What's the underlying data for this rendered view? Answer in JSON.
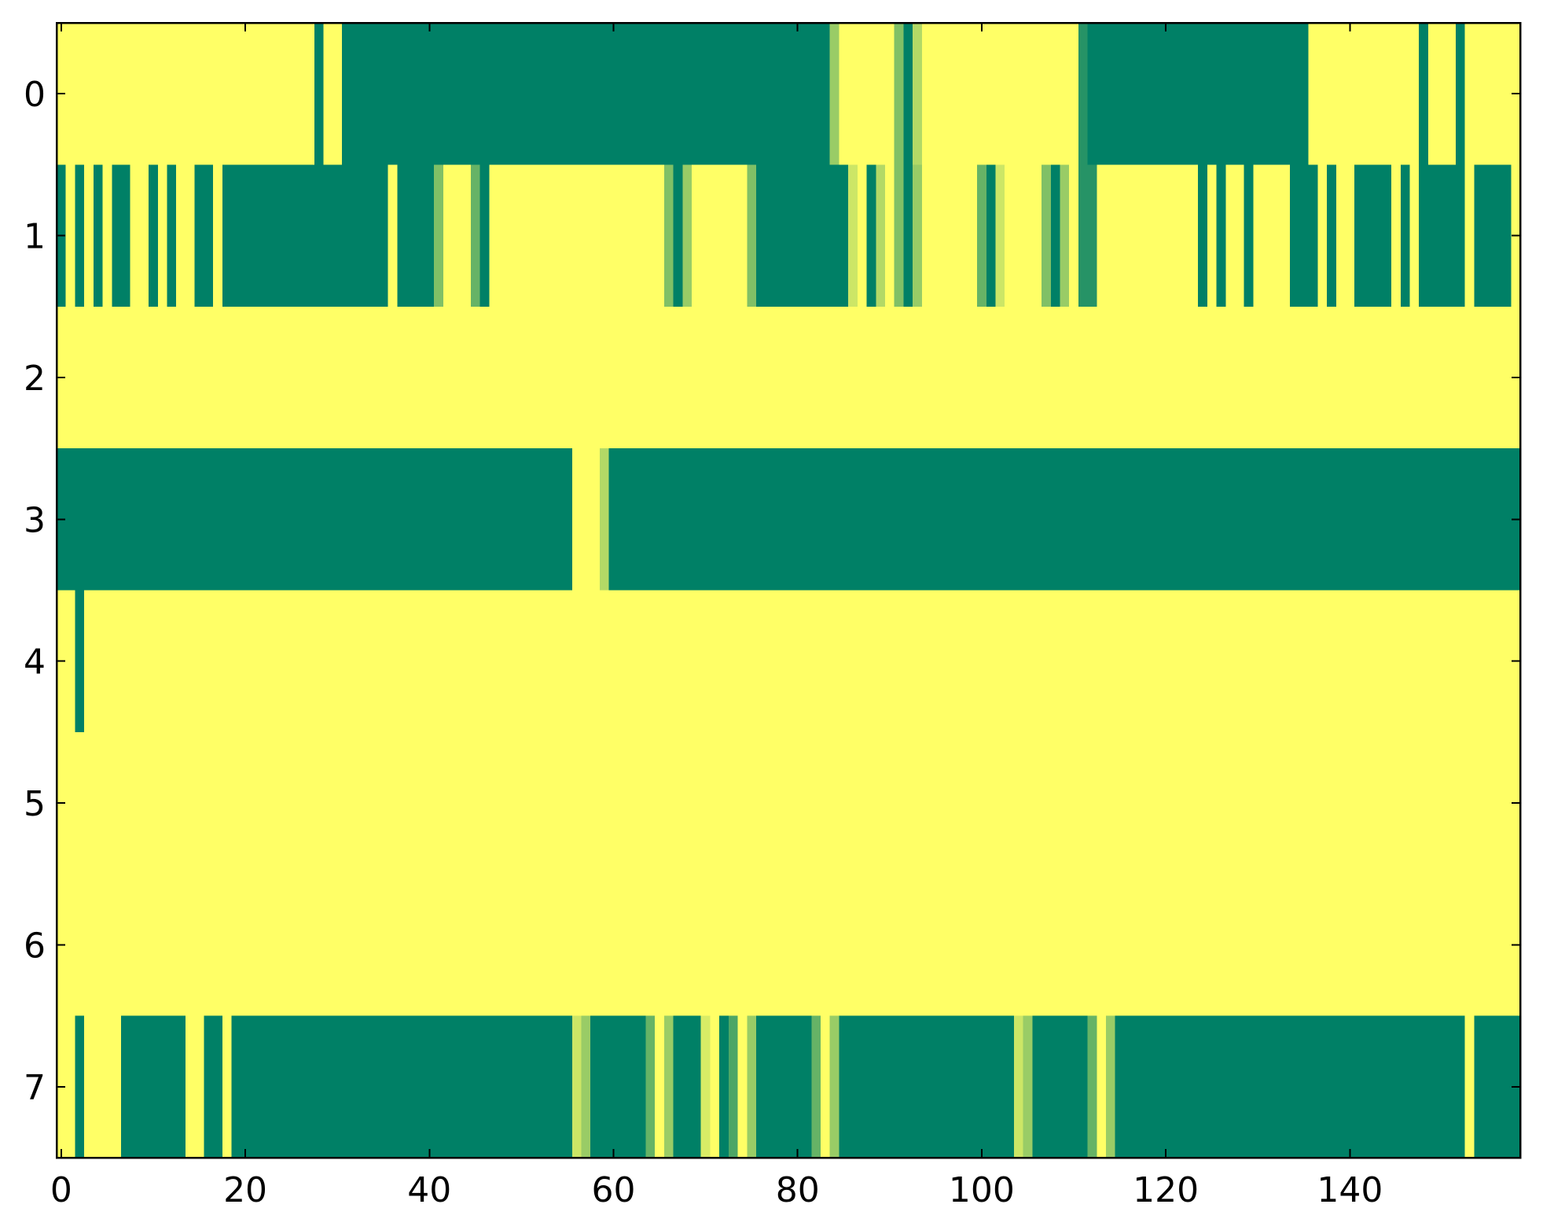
{
  "chart_data": {
    "type": "heatmap",
    "colormap": [
      "#008066",
      "#ffff66"
    ],
    "clim": [
      0,
      1
    ],
    "xlim": [
      -0.5,
      158.5
    ],
    "ylim": [
      7.5,
      -0.5
    ],
    "xticks": [
      0,
      20,
      40,
      60,
      80,
      100,
      120,
      140
    ],
    "yticks": [
      0,
      1,
      2,
      3,
      4,
      5,
      6,
      7
    ],
    "z": [
      [
        1,
        1,
        1,
        1,
        1,
        1,
        1,
        1,
        1,
        1,
        1,
        1,
        1,
        1,
        1,
        1,
        1,
        1,
        1,
        1,
        1,
        1,
        1,
        1,
        1,
        1,
        1,
        1,
        0,
        1,
        1,
        0,
        0,
        0,
        0,
        0,
        0,
        0,
        0,
        0,
        0,
        0,
        0,
        0,
        0,
        0,
        0,
        0,
        0,
        0,
        0,
        0,
        0,
        0,
        0,
        0,
        0,
        0,
        0,
        0,
        0,
        0,
        0,
        0,
        0,
        0,
        0,
        0,
        0,
        0,
        0,
        0,
        0,
        0,
        0,
        0,
        0,
        0,
        0,
        0,
        0,
        0,
        0,
        0,
        0.6,
        1,
        1,
        1,
        1,
        1,
        1,
        0.5,
        0,
        0.7,
        1,
        1,
        1,
        1,
        1,
        1,
        1,
        1,
        1,
        1,
        1,
        1,
        1,
        1,
        1,
        1,
        1,
        0.15,
        0,
        0,
        0,
        0,
        0,
        0,
        0,
        0,
        0,
        0,
        0,
        0,
        0,
        0,
        0,
        0,
        0,
        0,
        0,
        0,
        0,
        0,
        0,
        0,
        1,
        1,
        1,
        1,
        1,
        1,
        1,
        1,
        1,
        1,
        1,
        1,
        0,
        1,
        1,
        1,
        0,
        1,
        1,
        1,
        1,
        1,
        1
      ],
      [
        0,
        1,
        0,
        1,
        0,
        1,
        0,
        0,
        1,
        1,
        0,
        1,
        0,
        1,
        1,
        0,
        0,
        1,
        0,
        0,
        0,
        0,
        0,
        0,
        0,
        0,
        0,
        0,
        0,
        0,
        0,
        0,
        0,
        0,
        0,
        0,
        1,
        0,
        0,
        0,
        0,
        0.5,
        1,
        1,
        1,
        0.4,
        0,
        1,
        1,
        1,
        1,
        1,
        1,
        1,
        1,
        1,
        1,
        1,
        1,
        1,
        1,
        1,
        1,
        1,
        1,
        1,
        0.5,
        0,
        0.6,
        1,
        1,
        1,
        1,
        1,
        1,
        0.5,
        0,
        0,
        0,
        0,
        0,
        0,
        0,
        0,
        0,
        0,
        0.8,
        1,
        0,
        0.7,
        1,
        0.5,
        0,
        0.6,
        1,
        1,
        1,
        1,
        1,
        1,
        0.4,
        0,
        0.8,
        1,
        1,
        1,
        1,
        0.5,
        0,
        0.6,
        1,
        0.15,
        0.15,
        1,
        1,
        1,
        1,
        1,
        1,
        1,
        1,
        1,
        1,
        1,
        0,
        1,
        0,
        1,
        1,
        0,
        1,
        1,
        1,
        1,
        0,
        0,
        0,
        1,
        0,
        1,
        1,
        0,
        0,
        0,
        0,
        1,
        0,
        1,
        0,
        0,
        0,
        0,
        0,
        1,
        0,
        0,
        0,
        0,
        1
      ],
      [
        1,
        1,
        1,
        1,
        1,
        1,
        1,
        1,
        1,
        1,
        1,
        1,
        1,
        1,
        1,
        1,
        1,
        1,
        1,
        1,
        1,
        1,
        1,
        1,
        1,
        1,
        1,
        1,
        1,
        1,
        1,
        1,
        1,
        1,
        1,
        1,
        1,
        1,
        1,
        1,
        1,
        1,
        1,
        1,
        1,
        1,
        1,
        1,
        1,
        1,
        1,
        1,
        1,
        1,
        1,
        1,
        1,
        1,
        1,
        1,
        1,
        1,
        1,
        1,
        1,
        1,
        1,
        1,
        1,
        1,
        1,
        1,
        1,
        1,
        1,
        1,
        1,
        1,
        1,
        1,
        1,
        1,
        1,
        1,
        1,
        1,
        1,
        1,
        1,
        1,
        1,
        1,
        1,
        1,
        1,
        1,
        1,
        1,
        1,
        1,
        1,
        1,
        1,
        1,
        1,
        1,
        1,
        1,
        1,
        1,
        1,
        1,
        1,
        1,
        1,
        1,
        1,
        1,
        1,
        1,
        1,
        1,
        1,
        1,
        1,
        1,
        1,
        1,
        1,
        1,
        1,
        1,
        1,
        1,
        1,
        1,
        1,
        1,
        1,
        1,
        1,
        1,
        1,
        1,
        1,
        1,
        1,
        1,
        1,
        1,
        1,
        1,
        1,
        1,
        1,
        1,
        1,
        1,
        1
      ],
      [
        0,
        0,
        0,
        0,
        0,
        0,
        0,
        0,
        0,
        0,
        0,
        0,
        0,
        0,
        0,
        0,
        0,
        0,
        0,
        0,
        0,
        0,
        0,
        0,
        0,
        0,
        0,
        0,
        0,
        0,
        0,
        0,
        0,
        0,
        0,
        0,
        0,
        0,
        0,
        0,
        0,
        0,
        0,
        0,
        0,
        0,
        0,
        0,
        0,
        0,
        0,
        0,
        0,
        0,
        0,
        0,
        1,
        1,
        1,
        0.7,
        0,
        0,
        0,
        0,
        0,
        0,
        0,
        0,
        0,
        0,
        0,
        0,
        0,
        0,
        0,
        0,
        0,
        0,
        0,
        0,
        0,
        0,
        0,
        0,
        0,
        0,
        0,
        0,
        0,
        0,
        0,
        0,
        0,
        0,
        0,
        0,
        0,
        0,
        0,
        0,
        0,
        0,
        0,
        0,
        0,
        0,
        0,
        0,
        0,
        0,
        0,
        0,
        0,
        0,
        0,
        0,
        0,
        0,
        0,
        0,
        0,
        0,
        0,
        0,
        0,
        0,
        0,
        0,
        0,
        0,
        0,
        0,
        0,
        0,
        0,
        0,
        0,
        0,
        0,
        0,
        0,
        0,
        0,
        0,
        0,
        0,
        0,
        0,
        0,
        0,
        0,
        0,
        0,
        0,
        0,
        0,
        0,
        0,
        0
      ],
      [
        1,
        1,
        0,
        1,
        1,
        1,
        1,
        1,
        1,
        1,
        1,
        1,
        1,
        1,
        1,
        1,
        1,
        1,
        1,
        1,
        1,
        1,
        1,
        1,
        1,
        1,
        1,
        1,
        1,
        1,
        1,
        1,
        1,
        1,
        1,
        1,
        1,
        1,
        1,
        1,
        1,
        1,
        1,
        1,
        1,
        1,
        1,
        1,
        1,
        1,
        1,
        1,
        1,
        1,
        1,
        1,
        1,
        1,
        1,
        1,
        1,
        1,
        1,
        1,
        1,
        1,
        1,
        1,
        1,
        1,
        1,
        1,
        1,
        1,
        1,
        1,
        1,
        1,
        1,
        1,
        1,
        1,
        1,
        1,
        1,
        1,
        1,
        1,
        1,
        1,
        1,
        1,
        1,
        1,
        1,
        1,
        1,
        1,
        1,
        1,
        1,
        1,
        1,
        1,
        1,
        1,
        1,
        1,
        1,
        1,
        1,
        1,
        1,
        1,
        1,
        1,
        1,
        1,
        1,
        1,
        1,
        1,
        1,
        1,
        1,
        1,
        1,
        1,
        1,
        1,
        1,
        1,
        1,
        1,
        1,
        1,
        1,
        1,
        1,
        1,
        1,
        1,
        1,
        1,
        1,
        1,
        1,
        1,
        1,
        1,
        1,
        1,
        1,
        1,
        1,
        1,
        1,
        1,
        1
      ],
      [
        1,
        1,
        1,
        1,
        1,
        1,
        1,
        1,
        1,
        1,
        1,
        1,
        1,
        1,
        1,
        1,
        1,
        1,
        1,
        1,
        1,
        1,
        1,
        1,
        1,
        1,
        1,
        1,
        1,
        1,
        1,
        1,
        1,
        1,
        1,
        1,
        1,
        1,
        1,
        1,
        1,
        1,
        1,
        1,
        1,
        1,
        1,
        1,
        1,
        1,
        1,
        1,
        1,
        1,
        1,
        1,
        1,
        1,
        1,
        1,
        1,
        1,
        1,
        1,
        1,
        1,
        1,
        1,
        1,
        1,
        1,
        1,
        1,
        1,
        1,
        1,
        1,
        1,
        1,
        1,
        1,
        1,
        1,
        1,
        1,
        1,
        1,
        1,
        1,
        1,
        1,
        1,
        1,
        1,
        1,
        1,
        1,
        1,
        1,
        1,
        1,
        1,
        1,
        1,
        1,
        1,
        1,
        1,
        1,
        1,
        1,
        1,
        1,
        1,
        1,
        1,
        1,
        1,
        1,
        1,
        1,
        1,
        1,
        1,
        1,
        1,
        1,
        1,
        1,
        1,
        1,
        1,
        1,
        1,
        1,
        1,
        1,
        1,
        1,
        1,
        1,
        1,
        1,
        1,
        1,
        1,
        1,
        1,
        1,
        1,
        1,
        1,
        1,
        1,
        1,
        1,
        1,
        1,
        1
      ],
      [
        1,
        1,
        1,
        1,
        1,
        1,
        1,
        1,
        1,
        1,
        1,
        1,
        1,
        1,
        1,
        1,
        1,
        1,
        1,
        1,
        1,
        1,
        1,
        1,
        1,
        1,
        1,
        1,
        1,
        1,
        1,
        1,
        1,
        1,
        1,
        1,
        1,
        1,
        1,
        1,
        1,
        1,
        1,
        1,
        1,
        1,
        1,
        1,
        1,
        1,
        1,
        1,
        1,
        1,
        1,
        1,
        1,
        1,
        1,
        1,
        1,
        1,
        1,
        1,
        1,
        1,
        1,
        1,
        1,
        1,
        1,
        1,
        1,
        1,
        1,
        1,
        1,
        1,
        1,
        1,
        1,
        1,
        1,
        1,
        1,
        1,
        1,
        1,
        1,
        1,
        1,
        1,
        1,
        1,
        1,
        1,
        1,
        1,
        1,
        1,
        1,
        1,
        1,
        1,
        1,
        1,
        1,
        1,
        1,
        1,
        1,
        1,
        1,
        1,
        1,
        1,
        1,
        1,
        1,
        1,
        1,
        1,
        1,
        1,
        1,
        1,
        1,
        1,
        1,
        1,
        1,
        1,
        1,
        1,
        1,
        1,
        1,
        1,
        1,
        1,
        1,
        1,
        1,
        1,
        1,
        1,
        1,
        1,
        1,
        1,
        1,
        1,
        1,
        1,
        1,
        1,
        1,
        1,
        1
      ],
      [
        1,
        1,
        0,
        1,
        1,
        1,
        1,
        0,
        0,
        0,
        0,
        0,
        0,
        0,
        1,
        1,
        0,
        0,
        1,
        0,
        0,
        0,
        0,
        0,
        0,
        0,
        0,
        0,
        0,
        0,
        0,
        0,
        0,
        0,
        0,
        0,
        0,
        0,
        0,
        0,
        0,
        0,
        0,
        0,
        0,
        0,
        0,
        0,
        0,
        0,
        0,
        0,
        0,
        0,
        0,
        0,
        0.8,
        0.6,
        0,
        0,
        0,
        0,
        0,
        0,
        0.4,
        1,
        0.6,
        0,
        0,
        0,
        0.85,
        1,
        0,
        0.3,
        1,
        0.6,
        0,
        0,
        0,
        0,
        0,
        0,
        0.4,
        1,
        0.6,
        0,
        0,
        0,
        0,
        0,
        0,
        0,
        0,
        0,
        0,
        0,
        0,
        0,
        0,
        0,
        0,
        0,
        0,
        0,
        0.8,
        0.6,
        0,
        0,
        0,
        0,
        0,
        0,
        0.4,
        1,
        0.6,
        0,
        0,
        0,
        0,
        0,
        0,
        0,
        0,
        0,
        0,
        0,
        0,
        0,
        0,
        0,
        0,
        0,
        0,
        0,
        0,
        0,
        0,
        0,
        0,
        0,
        0,
        0,
        0,
        0,
        0,
        0,
        0,
        0,
        0,
        0,
        0,
        0,
        0,
        1,
        0,
        0,
        0,
        0,
        0
      ]
    ]
  }
}
